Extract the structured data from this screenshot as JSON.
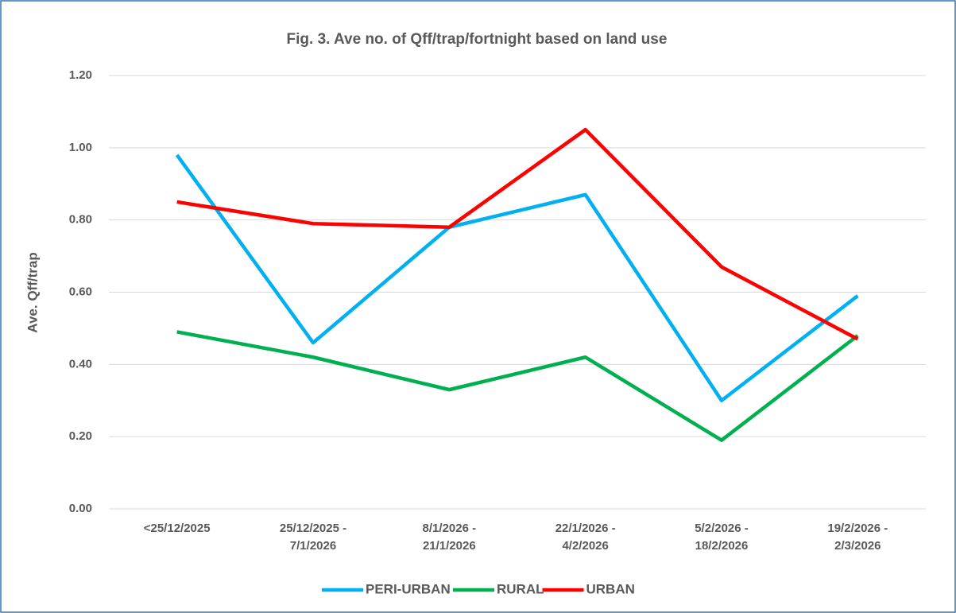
{
  "chart_data": {
    "type": "line",
    "title": "Fig. 3. Ave no. of Qff/trap/fortnight based on land use",
    "y_label": "Ave. Qff/trap",
    "categories": [
      "<25/12/2025",
      "25/12/2025 - 7/1/2026",
      "8/1/2026 - 21/1/2026",
      "22/1/2026 - 4/2/2026",
      "5/2/2026 - 18/2/2026",
      "19/2/2026 - 2/3/2026"
    ],
    "series": [
      {
        "name": "PERI-URBAN",
        "color": "#00b0f0",
        "values": [
          0.98,
          0.46,
          0.78,
          0.87,
          0.3,
          0.59
        ]
      },
      {
        "name": "RURAL",
        "color": "#00b050",
        "values": [
          0.49,
          0.42,
          0.33,
          0.42,
          0.19,
          0.48
        ]
      },
      {
        "name": "URBAN",
        "color": "#ff0000",
        "values": [
          0.85,
          0.79,
          0.78,
          1.05,
          0.67,
          0.47
        ]
      }
    ],
    "ylim": [
      0,
      1.2
    ],
    "yticks": [
      {
        "value": 0,
        "label": "0.00"
      },
      {
        "value": 0.2,
        "label": "0.20"
      },
      {
        "value": 0.4,
        "label": "0.40"
      },
      {
        "value": 0.6,
        "label": "0.60"
      },
      {
        "value": 0.8,
        "label": "0.80"
      },
      {
        "value": 1.0,
        "label": "1.00"
      },
      {
        "value": 1.2,
        "label": "1.20"
      }
    ],
    "grid": true,
    "legend": "bottom"
  }
}
